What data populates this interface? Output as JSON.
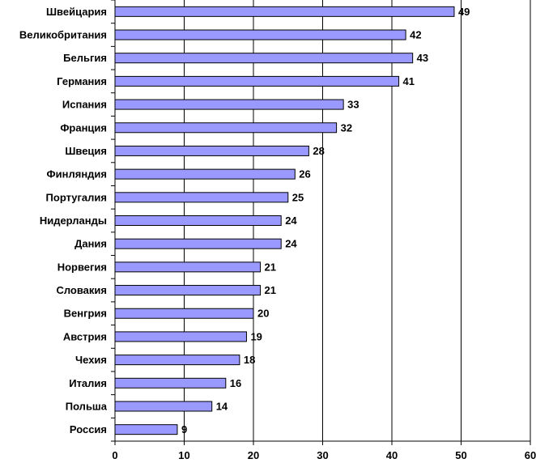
{
  "chart_data": {
    "type": "bar",
    "orientation": "horizontal",
    "title": "",
    "xlabel": "",
    "ylabel": "",
    "xlim": [
      0,
      60
    ],
    "x_ticks": [
      0,
      10,
      20,
      30,
      40,
      50,
      60
    ],
    "grid": "vertical gridlines",
    "legend": "none",
    "categories": [
      "Швейцария",
      "Великобритания",
      "Бельгия",
      "Германия",
      "Испания",
      "Франция",
      "Швеция",
      "Финляндия",
      "Португалия",
      "Нидерланды",
      "Дания",
      "Норвегия",
      "Словакия",
      "Венгрия",
      "Австрия",
      "Чехия",
      "Италия",
      "Польша",
      "Россия"
    ],
    "values": [
      49,
      42,
      43,
      41,
      33,
      32,
      28,
      26,
      25,
      24,
      24,
      21,
      21,
      20,
      19,
      18,
      16,
      14,
      9
    ],
    "bar_color": "#9999ff",
    "bar_border_color": "#000000",
    "grid_color": "#000000"
  }
}
